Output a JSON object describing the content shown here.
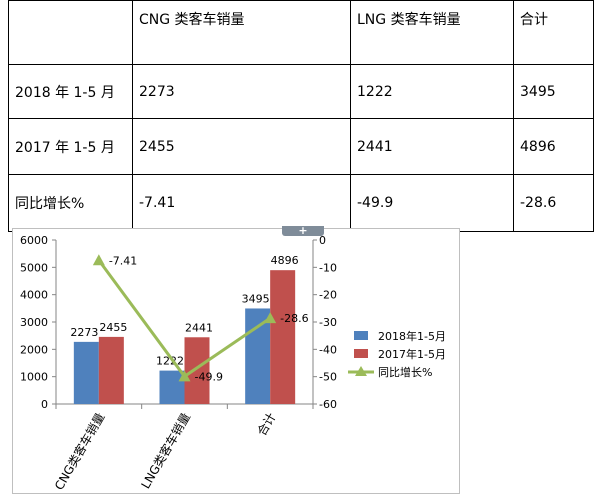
{
  "table": {
    "headers": [
      "",
      "CNG 类客车销量",
      "LNG 类客车销量",
      "合计"
    ],
    "rows": [
      [
        "2018 年 1-5 月",
        "2273",
        "1222",
        "3495"
      ],
      [
        "2017 年 1-5 月",
        "2455",
        "2441",
        "4896"
      ],
      [
        "同比增长%",
        "-7.41",
        "-49.9",
        "-28.6"
      ]
    ]
  },
  "chart_tab_symbol": "+",
  "chart_data": {
    "type": "bar",
    "categories": [
      "CNG类客车销量",
      "LNG类客车销量",
      "合计"
    ],
    "series": [
      {
        "name": "2018年1-5月",
        "type": "bar",
        "axis": "left",
        "color": "#4f81bd",
        "values": [
          2273,
          1222,
          3495
        ]
      },
      {
        "name": "2017年1-5月",
        "type": "bar",
        "axis": "left",
        "color": "#c0504d",
        "values": [
          2455,
          2441,
          4896
        ]
      },
      {
        "name": "同比增长%",
        "type": "line",
        "axis": "right",
        "color": "#9bbb59",
        "values": [
          -7.41,
          -49.9,
          -28.6
        ]
      }
    ],
    "ylim": [
      0,
      6000
    ],
    "yticks": [
      "0",
      "1000",
      "2000",
      "3000",
      "4000",
      "5000",
      "6000"
    ],
    "y2lim": [
      -60,
      0
    ],
    "y2ticks": [
      "0",
      "-10",
      "-20",
      "-30",
      "-40",
      "-50",
      "-60"
    ],
    "data_labels": {
      "bars": [
        [
          "2273",
          "1222",
          "3495"
        ],
        [
          "2455",
          "2441",
          "4896"
        ]
      ],
      "line": [
        "-7.41",
        "-49.9",
        "-28.6"
      ]
    },
    "legend_position": "right",
    "grid": false
  }
}
